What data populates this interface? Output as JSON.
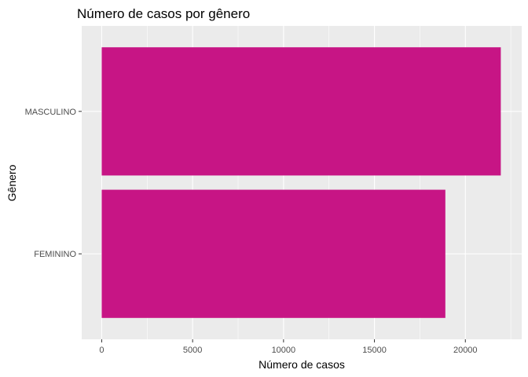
{
  "colors": {
    "panel_background": "#ebebeb",
    "grid_major": "#ffffff",
    "bar_fill": "#c71585",
    "tick_text": "#4d4d4d",
    "tick_mark": "#333333"
  },
  "chart_data": {
    "type": "bar",
    "orientation": "horizontal",
    "title": "Número de casos por gênero",
    "xlabel": "Número de casos",
    "ylabel": "Gênero",
    "categories": [
      "MASCULINO",
      "FEMININO"
    ],
    "values": [
      21950,
      18900
    ],
    "xlim": [
      -1100,
      23100
    ],
    "x_ticks": [
      0,
      5000,
      10000,
      15000,
      20000
    ],
    "x_tick_labels": [
      "0",
      "5000",
      "10000",
      "15000",
      "20000"
    ],
    "grid": true,
    "legend": "none"
  }
}
